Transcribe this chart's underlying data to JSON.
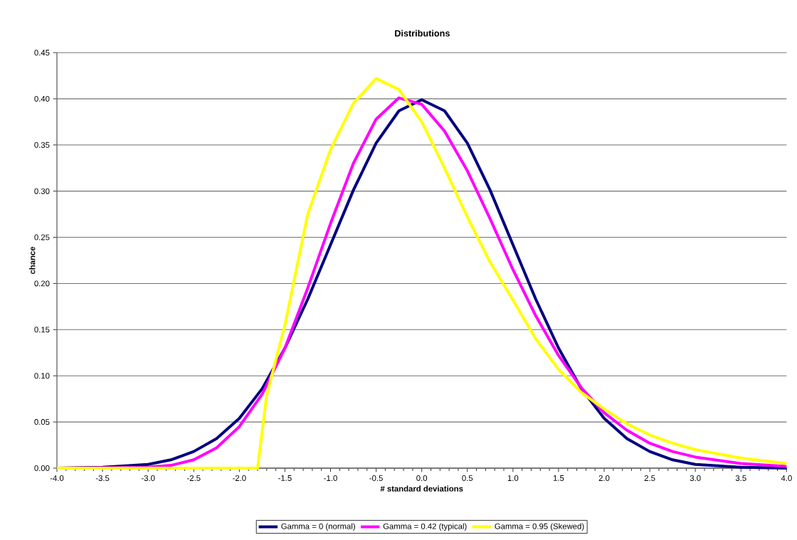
{
  "chart_data": {
    "type": "line",
    "title": "Distributions",
    "xlabel": "# standard deviations",
    "ylabel": "chance",
    "xlim": [
      -4,
      4
    ],
    "xticks": [
      {
        "value": -4,
        "label": "-4.0"
      },
      {
        "value": -3.5,
        "label": "-3.5"
      },
      {
        "value": -3,
        "label": "-3.0"
      },
      {
        "value": -2.5,
        "label": "-2.5"
      },
      {
        "value": -2,
        "label": "-2.0"
      },
      {
        "value": -1.5,
        "label": "-1.5"
      },
      {
        "value": -1,
        "label": "-1.0"
      },
      {
        "value": -0.5,
        "label": "-0.5"
      },
      {
        "value": 0,
        "label": "0.0"
      },
      {
        "value": 0.5,
        "label": "0.5"
      },
      {
        "value": 1,
        "label": "1.0"
      },
      {
        "value": 1.5,
        "label": "1.5"
      },
      {
        "value": 2,
        "label": "2.0"
      },
      {
        "value": 2.5,
        "label": "2.5"
      },
      {
        "value": 3,
        "label": "3.0"
      },
      {
        "value": 3.5,
        "label": "3.5"
      },
      {
        "value": 4,
        "label": "4.0"
      }
    ],
    "ylim": [
      0,
      0.45
    ],
    "yticks": [
      {
        "value": 0,
        "label": "0.00"
      },
      {
        "value": 0.05,
        "label": "0.05"
      },
      {
        "value": 0.1,
        "label": "0.10"
      },
      {
        "value": 0.15,
        "label": "0.15"
      },
      {
        "value": 0.2,
        "label": "0.20"
      },
      {
        "value": 0.25,
        "label": "0.25"
      },
      {
        "value": 0.3,
        "label": "0.30"
      },
      {
        "value": 0.35,
        "label": "0.35"
      },
      {
        "value": 0.4,
        "label": "0.40"
      },
      {
        "value": 0.45,
        "label": "0.45"
      }
    ],
    "grid": "y",
    "legend": "bottom",
    "marker": "none",
    "line_style": "solid",
    "series": [
      {
        "name": "Gamma = 0 (normal)",
        "color": "#000080",
        "x": [
          -4,
          -3.5,
          -3,
          -2.75,
          -2.5,
          -2.25,
          -2,
          -1.75,
          -1.5,
          -1.25,
          -1,
          -0.75,
          -0.5,
          -0.25,
          0,
          0.25,
          0.5,
          0.75,
          1,
          1.25,
          1.5,
          1.75,
          2,
          2.25,
          2.5,
          2.75,
          3,
          3.5,
          4
        ],
        "values": [
          0.0,
          0.001,
          0.004,
          0.009,
          0.018,
          0.032,
          0.054,
          0.086,
          0.13,
          0.183,
          0.242,
          0.301,
          0.352,
          0.387,
          0.399,
          0.387,
          0.352,
          0.301,
          0.242,
          0.183,
          0.13,
          0.086,
          0.054,
          0.032,
          0.018,
          0.009,
          0.004,
          0.001,
          0.0
        ]
      },
      {
        "name": "Gamma = 0.42 (typical)",
        "color": "#ff00ff",
        "x": [
          -4,
          -3,
          -2.75,
          -2.5,
          -2.25,
          -2,
          -1.75,
          -1.5,
          -1.25,
          -1,
          -0.75,
          -0.5,
          -0.25,
          0,
          0.25,
          0.5,
          0.75,
          1,
          1.25,
          1.5,
          1.75,
          2,
          2.25,
          2.5,
          2.75,
          3,
          3.5,
          4
        ],
        "values": [
          0.0,
          0.001,
          0.003,
          0.009,
          0.022,
          0.045,
          0.08,
          0.13,
          0.195,
          0.265,
          0.33,
          0.378,
          0.401,
          0.394,
          0.365,
          0.322,
          0.27,
          0.215,
          0.165,
          0.122,
          0.087,
          0.06,
          0.041,
          0.027,
          0.018,
          0.012,
          0.005,
          0.002
        ]
      },
      {
        "name": "Gamma = 0.95 (Skewed)",
        "color": "#ffff00",
        "x": [
          -4,
          -1.8,
          -1.7,
          -1.5,
          -1.25,
          -1,
          -0.75,
          -0.5,
          -0.25,
          0,
          0.25,
          0.5,
          0.75,
          1,
          1.25,
          1.5,
          1.75,
          2,
          2.25,
          2.5,
          2.75,
          3,
          3.5,
          4
        ],
        "values": [
          0.0,
          0.0,
          0.079,
          0.155,
          0.275,
          0.345,
          0.395,
          0.422,
          0.41,
          0.375,
          0.325,
          0.272,
          0.223,
          0.182,
          0.14,
          0.107,
          0.082,
          0.064,
          0.048,
          0.036,
          0.027,
          0.02,
          0.011,
          0.005
        ]
      }
    ]
  }
}
